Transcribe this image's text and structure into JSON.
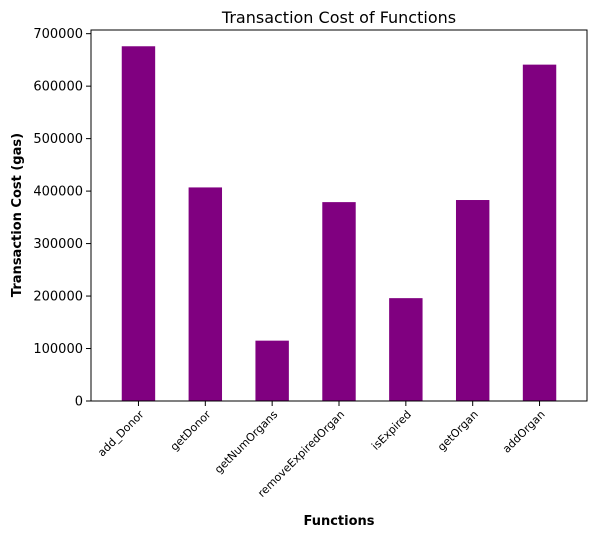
{
  "chart_data": {
    "type": "bar",
    "title": "Transaction Cost of Functions",
    "xlabel": "Functions",
    "ylabel": "Transaction Cost (gas)",
    "categories": [
      "add_Donor",
      "getDonor",
      "getNumOrgans",
      "removeExpiredOrgan",
      "isExpired",
      "getOrgan",
      "addOrgan"
    ],
    "values": [
      676000,
      407000,
      115000,
      379000,
      196000,
      383000,
      641000
    ],
    "yticks": [
      "0",
      "100000",
      "200000",
      "300000",
      "400000",
      "500000",
      "600000",
      "700000"
    ],
    "ylim": [
      0,
      707000
    ],
    "bar_color": "#800080",
    "grid": false,
    "legend": "none"
  }
}
